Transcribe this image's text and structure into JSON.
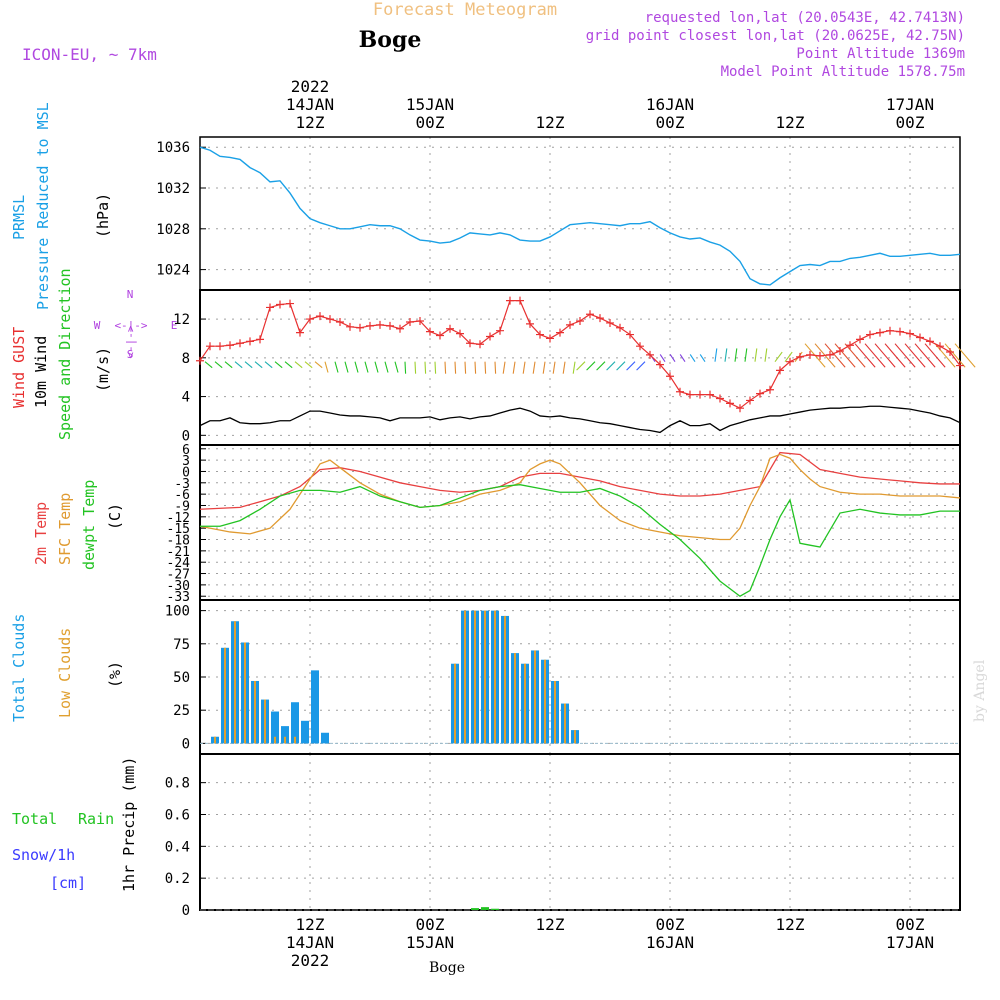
{
  "header": {
    "title": "Forecast Meteogram",
    "location": "Boge",
    "model": "ICON-EU, ~ 7km",
    "requested": "requested lon,lat (20.0543E, 42.7413N)",
    "grid_point": "grid point closest lon,lat (20.0625E, 42.75N)",
    "point_altitude": "Point Altitude 1369m",
    "model_altitude": "Model Point Altitude 1578.75m",
    "watermark": "by Angel",
    "footer_location": "Boge"
  },
  "colors": {
    "prmsl": "#1aa0e6",
    "gust": "#e83030",
    "wind10m": "#000000",
    "temp2m": "#e84040",
    "sfc": "#e09a30",
    "dewpt": "#22c322",
    "total_clouds": "#1a98e6",
    "low_clouds": "#e0a030",
    "rain": "#22c322",
    "snow": "#3a3aff",
    "compass": "#b040e0",
    "header_purple": "#b048e0",
    "title_orange": "#f0c080"
  },
  "chart_data": [
    {
      "type": "line",
      "id": "pressure",
      "ylabel_lines": [
        "PRMSL",
        "Pressure Reduced to MSL"
      ],
      "unit": "(hPa)",
      "ylim": [
        1022,
        1037
      ],
      "yticks": [
        "1024",
        "1028",
        "1032",
        "1036"
      ],
      "xlim": [
        0,
        76
      ],
      "series": [
        {
          "name": "PRMSL",
          "x": [
            0,
            1,
            2,
            3,
            4,
            5,
            6,
            7,
            8,
            9,
            10,
            11,
            12,
            13,
            14,
            15,
            16,
            17,
            18,
            19,
            20,
            21,
            22,
            23,
            24,
            25,
            26,
            27,
            28,
            29,
            30,
            31,
            32,
            33,
            34,
            35,
            36,
            37,
            38,
            39,
            40,
            41,
            42,
            43,
            44,
            45,
            46,
            47,
            48,
            49,
            50,
            51,
            52,
            53,
            54,
            55,
            56,
            57,
            58,
            59,
            60,
            61,
            62,
            63,
            64,
            65,
            66,
            67,
            68,
            69,
            70,
            71,
            72,
            73,
            74,
            75,
            76
          ],
          "values": [
            1036,
            1035.7,
            1035.1,
            1035,
            1034.8,
            1034,
            1033.5,
            1032.6,
            1032.7,
            1031.5,
            1030,
            1029,
            1028.6,
            1028.3,
            1028,
            1028,
            1028.2,
            1028.4,
            1028.3,
            1028.3,
            1028,
            1027.4,
            1026.9,
            1026.8,
            1026.6,
            1026.7,
            1027.1,
            1027.6,
            1027.5,
            1027.4,
            1027.6,
            1027.4,
            1026.9,
            1026.8,
            1026.8,
            1027.2,
            1027.8,
            1028.4,
            1028.5,
            1028.6,
            1028.5,
            1028.4,
            1028.3,
            1028.5,
            1028.5,
            1028.7,
            1028.1,
            1027.6,
            1027.2,
            1027,
            1027.1,
            1026.7,
            1026.4,
            1025.8,
            1024.8,
            1023.1,
            1022.6,
            1022.5,
            1023.2,
            1023.8,
            1024.4,
            1024.5,
            1024.4,
            1024.8,
            1024.8,
            1025.1,
            1025.2,
            1025.4,
            1025.6,
            1025.3,
            1025.3,
            1025.4,
            1025.5,
            1025.6,
            1025.4,
            1025.4,
            1025.5
          ]
        }
      ]
    },
    {
      "type": "line",
      "id": "wind",
      "ylabel_lines": [
        "Wind GUST",
        "10m Wind",
        "Speed and Direction"
      ],
      "unit": "(m/s)",
      "compass": [
        "N",
        "E",
        "S",
        "W"
      ],
      "ylim": [
        -1,
        15
      ],
      "yticks": [
        "0",
        "4",
        "8",
        "12"
      ],
      "xlim": [
        0,
        76
      ],
      "series": [
        {
          "name": "Wind GUST",
          "x": [
            0,
            1,
            2,
            3,
            4,
            5,
            6,
            7,
            8,
            9,
            10,
            11,
            12,
            13,
            14,
            15,
            16,
            17,
            18,
            19,
            20,
            21,
            22,
            23,
            24,
            25,
            26,
            27,
            28,
            29,
            30,
            31,
            32,
            33,
            34,
            35,
            36,
            37,
            38,
            39,
            40,
            41,
            42,
            43,
            44,
            45,
            46,
            47,
            48,
            49,
            50,
            51,
            52,
            53,
            54,
            55,
            56,
            57,
            58,
            59,
            60,
            61,
            62,
            63,
            64,
            65,
            66,
            67,
            68,
            69,
            70,
            71,
            72,
            73,
            74,
            75,
            76
          ],
          "values": [
            7.7,
            9.2,
            9.2,
            9.3,
            9.5,
            9.7,
            9.9,
            13.2,
            13.5,
            13.6,
            10.6,
            12,
            12.3,
            12,
            11.7,
            11.2,
            11.1,
            11.3,
            11.4,
            11.3,
            11,
            11.7,
            11.8,
            10.7,
            10.3,
            11,
            10.5,
            9.5,
            9.4,
            10.2,
            10.8,
            13.9,
            13.9,
            11.5,
            10.4,
            10,
            10.6,
            11.4,
            11.8,
            12.5,
            12.1,
            11.6,
            11.1,
            10.4,
            9.2,
            8.3,
            7.3,
            6.1,
            4.5,
            4.2,
            4.2,
            4.2,
            3.8,
            3.3,
            2.8,
            3.6,
            4.3,
            4.7,
            6.7,
            7.6,
            8.1,
            8.3,
            8.2,
            8.3,
            8.7,
            9.3,
            9.9,
            10.4,
            10.6,
            10.8,
            10.7,
            10.5,
            10.1,
            9.7,
            9.2,
            8.6,
            7.2
          ]
        },
        {
          "name": "10m Wind",
          "x": [
            0,
            1,
            2,
            3,
            4,
            5,
            6,
            7,
            8,
            9,
            10,
            11,
            12,
            13,
            14,
            15,
            16,
            17,
            18,
            19,
            20,
            21,
            22,
            23,
            24,
            25,
            26,
            27,
            28,
            29,
            30,
            31,
            32,
            33,
            34,
            35,
            36,
            37,
            38,
            39,
            40,
            41,
            42,
            43,
            44,
            45,
            46,
            47,
            48,
            49,
            50,
            51,
            52,
            53,
            54,
            55,
            56,
            57,
            58,
            59,
            60,
            61,
            62,
            63,
            64,
            65,
            66,
            67,
            68,
            69,
            70,
            71,
            72,
            73,
            74,
            75,
            76
          ],
          "values": [
            1,
            1.5,
            1.5,
            1.8,
            1.3,
            1.2,
            1.2,
            1.3,
            1.5,
            1.5,
            2,
            2.5,
            2.5,
            2.3,
            2.1,
            2,
            2,
            1.9,
            1.8,
            1.5,
            1.8,
            1.8,
            1.8,
            1.9,
            1.6,
            1.8,
            1.9,
            1.7,
            1.9,
            2,
            2.3,
            2.6,
            2.8,
            2.5,
            2,
            1.9,
            2,
            1.8,
            1.7,
            1.5,
            1.3,
            1.2,
            1,
            0.8,
            0.6,
            0.5,
            0.3,
            1,
            1.5,
            1,
            1,
            1.2,
            0.5,
            1,
            1.3,
            1.6,
            1.8,
            2,
            2,
            2.2,
            2.4,
            2.6,
            2.7,
            2.8,
            2.8,
            2.9,
            2.9,
            3,
            3,
            2.9,
            2.8,
            2.7,
            2.5,
            2.3,
            2,
            1.8,
            1.3
          ]
        }
      ]
    },
    {
      "type": "line",
      "id": "temperature",
      "ylabel_lines": [
        "2m Temp",
        "SFC Temp",
        "dewpt Temp"
      ],
      "unit": "(C)",
      "ylim": [
        -34,
        7
      ],
      "yticks": [
        "6",
        "3",
        "0",
        "-3",
        "-6",
        "-9",
        "-12",
        "-15",
        "-18",
        "-21",
        "-24",
        "-27",
        "-30",
        "-33"
      ],
      "xlim": [
        0,
        76
      ],
      "series": [
        {
          "name": "2m Temp",
          "x": [
            0,
            4,
            6,
            8,
            10,
            12,
            14,
            16,
            18,
            20,
            22,
            24,
            26,
            28,
            30,
            32,
            34,
            36,
            38,
            40,
            42,
            44,
            46,
            48,
            50,
            52,
            54,
            56,
            58,
            60,
            62,
            64,
            66,
            68,
            70,
            72,
            74,
            76
          ],
          "values": [
            -10,
            -9.5,
            -8,
            -6.5,
            -4,
            0.5,
            1,
            0,
            -1.5,
            -3,
            -4,
            -5,
            -5.5,
            -5,
            -4,
            -1.5,
            -0.5,
            -0.5,
            -1.5,
            -2.5,
            -4,
            -5,
            -6,
            -6.5,
            -6.5,
            -6,
            -5,
            -4,
            5,
            4.5,
            0.5,
            -0.5,
            -1.5,
            -2,
            -2.5,
            -3,
            -3.3,
            -3.3
          ]
        },
        {
          "name": "SFC Temp",
          "x": [
            0,
            3,
            5,
            7,
            9,
            11,
            12,
            13,
            14,
            16,
            18,
            20,
            22,
            24,
            26,
            28,
            30,
            32,
            33,
            34,
            35,
            36,
            38,
            40,
            42,
            44,
            46,
            48,
            50,
            52,
            53,
            54,
            55,
            56,
            57,
            58,
            59,
            60,
            61,
            62,
            64,
            66,
            68,
            70,
            72,
            74,
            76
          ],
          "values": [
            -14.5,
            -16,
            -16.5,
            -15,
            -10,
            -2,
            2,
            3,
            1,
            -3,
            -6,
            -8,
            -9.5,
            -9,
            -8,
            -6,
            -5,
            -3,
            0.5,
            2,
            3,
            2,
            -3,
            -9,
            -13,
            -15,
            -16,
            -17,
            -17.5,
            -18,
            -18,
            -15,
            -9,
            -4,
            3.5,
            4.5,
            3.5,
            0.5,
            -2,
            -4,
            -5.5,
            -6,
            -6,
            -6.5,
            -6.5,
            -6.5,
            -7
          ]
        },
        {
          "name": "dewpt Temp",
          "x": [
            0,
            2,
            4,
            6,
            8,
            10,
            12,
            14,
            16,
            18,
            20,
            22,
            24,
            26,
            28,
            30,
            32,
            34,
            36,
            38,
            40,
            42,
            44,
            46,
            48,
            50,
            52,
            54,
            55,
            56,
            57,
            58,
            59,
            60,
            61,
            62,
            64,
            66,
            68,
            70,
            72,
            74,
            76
          ],
          "values": [
            -14.5,
            -14.5,
            -13,
            -10,
            -6.5,
            -5,
            -5,
            -5.5,
            -4,
            -6.5,
            -8,
            -9.5,
            -9,
            -7,
            -5,
            -4,
            -3.5,
            -4.5,
            -5.5,
            -5.5,
            -4.5,
            -6.5,
            -9.5,
            -14,
            -18,
            -23,
            -29,
            -33,
            -31.5,
            -25,
            -18,
            -12,
            -7.5,
            -19,
            -19.5,
            -20,
            -11,
            -10,
            -11,
            -11.5,
            -11.5,
            -10.5,
            -10.5
          ]
        }
      ]
    },
    {
      "type": "bar",
      "id": "clouds",
      "ylabel_lines": [
        "Total Clouds",
        "Low Clouds"
      ],
      "unit": "(%)",
      "ylim": [
        -8,
        108
      ],
      "yticks": [
        "0",
        "25",
        "50",
        "75",
        "100"
      ],
      "xlim": [
        0,
        76
      ],
      "series": [
        {
          "name": "Total Clouds",
          "x": [
            1,
            2,
            3,
            4,
            5,
            6,
            7,
            8,
            9,
            10,
            11,
            12,
            13,
            14,
            25,
            26,
            27,
            28,
            29,
            30,
            31,
            32,
            33,
            34,
            35,
            36,
            37
          ],
          "values": [
            5,
            72,
            92,
            76,
            47,
            33,
            24,
            13,
            31,
            17,
            55,
            8,
            0,
            0,
            60,
            100,
            100,
            100,
            100,
            96,
            68,
            60,
            70,
            63,
            47,
            30,
            10
          ]
        },
        {
          "name": "Low Clouds",
          "x": [
            1,
            2,
            3,
            4,
            5,
            6,
            7,
            8,
            9,
            10,
            11,
            12,
            13,
            14,
            25,
            26,
            27,
            28,
            29,
            30,
            31,
            32,
            33,
            34,
            35,
            36,
            37
          ],
          "values": [
            5,
            72,
            92,
            76,
            47,
            33,
            5,
            5,
            5,
            0,
            0,
            0,
            0,
            0,
            60,
            100,
            100,
            100,
            100,
            96,
            68,
            60,
            70,
            63,
            47,
            30,
            10
          ]
        }
      ]
    },
    {
      "type": "bar",
      "id": "precip",
      "ylabel": "1hr Precip (mm)",
      "legend": [
        "Total",
        "Rain",
        "Snow/1h",
        "[cm]"
      ],
      "ylim": [
        0,
        0.98
      ],
      "yticks": [
        "0",
        "0.2",
        "0.4",
        "0.6",
        "0.8"
      ],
      "xlim": [
        0,
        76
      ],
      "series": [
        {
          "name": "Total Rain",
          "x": [
            27,
            28,
            29
          ],
          "values": [
            0.012,
            0.018,
            0.008
          ]
        },
        {
          "name": "Snow/1h",
          "x": [],
          "values": []
        }
      ]
    }
  ],
  "time_axis": {
    "ticks": [
      {
        "t": 11,
        "top": [
          "2022",
          "14JAN",
          "12Z"
        ],
        "bottom": [
          "12Z",
          "14JAN",
          "2022"
        ]
      },
      {
        "t": 23,
        "top": [
          "15JAN",
          "00Z"
        ],
        "bottom": [
          "00Z",
          "15JAN"
        ]
      },
      {
        "t": 35,
        "top": [
          "12Z"
        ],
        "bottom": [
          "12Z"
        ]
      },
      {
        "t": 47,
        "top": [
          "16JAN",
          "00Z"
        ],
        "bottom": [
          "00Z",
          "16JAN"
        ]
      },
      {
        "t": 59,
        "top": [
          "12Z"
        ],
        "bottom": [
          "12Z"
        ]
      },
      {
        "t": 71,
        "top": [
          "17JAN",
          "00Z"
        ],
        "bottom": [
          "00Z",
          "17JAN"
        ]
      }
    ]
  }
}
